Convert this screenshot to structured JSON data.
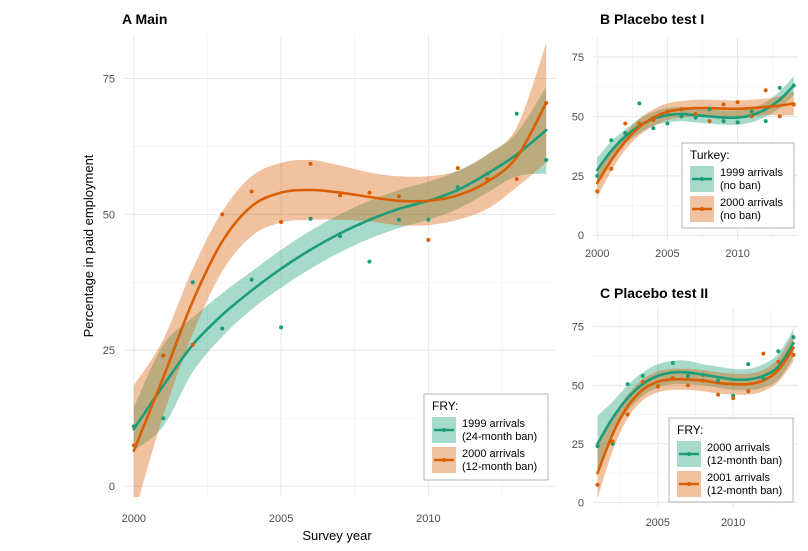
{
  "chart_data": [
    {
      "type": "scatter",
      "panel_label": "A",
      "title": "Main",
      "xlabel": "Survey year",
      "ylabel": "Percentage in paid employment",
      "xlim": [
        1999.7,
        2014.3
      ],
      "ylim": [
        -2,
        83
      ],
      "xticks": [
        2000,
        2005,
        2010
      ],
      "yticks": [
        0,
        25,
        50,
        75
      ],
      "grid": true,
      "legend": {
        "title": "FRY:",
        "placement": "bottom-right"
      },
      "series": [
        {
          "name": "1999 arrivals",
          "name_line2": "(24-month ban)",
          "color": "#1b9e77",
          "fill": "#a6dbc9",
          "x": [
            2000,
            2001,
            2002,
            2003,
            2004,
            2005,
            2006,
            2007,
            2008,
            2009,
            2010,
            2011,
            2012,
            2013,
            2014
          ],
          "points": [
            11,
            12.5,
            37.5,
            29,
            38,
            29.2,
            49.2,
            46,
            41.3,
            49,
            49,
            55,
            57.5,
            68.5,
            60
          ],
          "fit": [
            10.5,
            18.5,
            26,
            31.5,
            36,
            40,
            43.5,
            46.5,
            49,
            51,
            52.5,
            54.5,
            57.5,
            61,
            65.5
          ],
          "band": [
            4,
            7.5,
            5,
            4,
            3.5,
            3.5,
            3.5,
            3.5,
            3.5,
            3.5,
            3.5,
            3.5,
            3.5,
            4,
            8
          ]
        },
        {
          "name": "2000 arrivals",
          "name_line2": "(12-month ban)",
          "color": "#d95f02",
          "fill": "#f0bc95",
          "x": [
            2000,
            2001,
            2002,
            2003,
            2004,
            2005,
            2006,
            2007,
            2008,
            2009,
            2010,
            2011,
            2012,
            2013,
            2014
          ],
          "points": [
            7.5,
            24,
            26,
            50,
            54.2,
            48.6,
            59.3,
            53.5,
            54,
            53.3,
            45.3,
            58.5,
            56.5,
            56.5,
            70.5
          ],
          "fit": [
            6.5,
            20,
            34,
            45,
            51.5,
            54,
            54.5,
            54,
            53.2,
            52.5,
            52.5,
            53.5,
            56,
            60.5,
            70.5
          ],
          "band": [
            12,
            7,
            6,
            5.5,
            5.5,
            5.5,
            5.5,
            5,
            4.5,
            4.5,
            4.5,
            4.5,
            5,
            5.5,
            11
          ]
        }
      ]
    },
    {
      "type": "scatter",
      "panel_label": "B",
      "title": "Placebo test I",
      "xlim": [
        1999.7,
        2014.3
      ],
      "ylim": [
        -2,
        83
      ],
      "xticks": [
        2000,
        2005,
        2010
      ],
      "yticks": [
        0,
        25,
        50,
        75
      ],
      "grid": true,
      "legend": {
        "title": "Turkey:",
        "placement": "right"
      },
      "series": [
        {
          "name": "1999 arrivals",
          "name_line2": "(no ban)",
          "color": "#1b9e77",
          "fill": "#a6dbc9",
          "x": [
            2000,
            2001,
            2002,
            2003,
            2004,
            2005,
            2006,
            2007,
            2008,
            2009,
            2010,
            2011,
            2012,
            2013,
            2014
          ],
          "points": [
            25,
            40,
            43,
            55.5,
            45,
            47,
            50,
            49.5,
            53,
            48,
            47.5,
            52,
            48,
            62,
            63
          ],
          "fit": [
            27.5,
            35.5,
            41.5,
            46,
            49,
            50.5,
            51,
            50.5,
            50,
            49.5,
            49.5,
            50.5,
            53,
            57,
            63
          ],
          "band": [
            5,
            4,
            3,
            3,
            3,
            3,
            3,
            3,
            3,
            3,
            3,
            3,
            3,
            3.5,
            4
          ]
        },
        {
          "name": "2000 arrivals",
          "name_line2": "(no ban)",
          "color": "#d95f02",
          "fill": "#f0bc95",
          "x": [
            2000,
            2001,
            2002,
            2003,
            2004,
            2005,
            2006,
            2007,
            2008,
            2009,
            2010,
            2011,
            2012,
            2013,
            2014
          ],
          "points": [
            18.5,
            28,
            47,
            47,
            48.5,
            52,
            53,
            51,
            48,
            55,
            56,
            50,
            61,
            50,
            55
          ],
          "fit": [
            22,
            31.5,
            39.5,
            45.5,
            49.5,
            52,
            53,
            53.5,
            53.5,
            53.3,
            53.2,
            53.5,
            54,
            54.5,
            55.5
          ],
          "band": [
            6,
            4.5,
            3.5,
            3.5,
            3.5,
            3.5,
            3.5,
            3.5,
            3.5,
            3.5,
            3.5,
            3.5,
            3.5,
            4,
            5
          ]
        }
      ]
    },
    {
      "type": "scatter",
      "panel_label": "C",
      "title": "Placebo test II",
      "xlim": [
        2000.7,
        2014.3
      ],
      "ylim": [
        -2,
        83
      ],
      "xticks": [
        2005,
        2010
      ],
      "yticks": [
        0,
        25,
        50,
        75
      ],
      "grid": true,
      "legend": {
        "title": "FRY:",
        "placement": "bottom-right"
      },
      "series": [
        {
          "name": "2000 arrivals",
          "name_line2": "(12-month ban)",
          "color": "#1b9e77",
          "fill": "#a6dbc9",
          "x": [
            2001,
            2002,
            2003,
            2004,
            2005,
            2006,
            2007,
            2008,
            2009,
            2010,
            2011,
            2012,
            2013,
            2014
          ],
          "points": [
            24,
            25,
            50.5,
            54,
            49.5,
            59.5,
            54,
            54.5,
            52,
            45.5,
            59,
            53,
            64.5,
            70.5
          ],
          "fit": [
            25,
            36,
            44.5,
            50.5,
            54,
            55.5,
            55.5,
            54.5,
            53.5,
            52.5,
            52.5,
            54,
            58,
            68
          ],
          "band": [
            12,
            7,
            5.5,
            5,
            5,
            5,
            5,
            4.5,
            4.5,
            4.5,
            4.5,
            5,
            5.5,
            6
          ]
        },
        {
          "name": "2001 arrivals",
          "name_line2": "(12-month ban)",
          "color": "#d95f02",
          "fill": "#f0bc95",
          "x": [
            2001,
            2002,
            2003,
            2004,
            2005,
            2006,
            2007,
            2008,
            2009,
            2010,
            2011,
            2012,
            2013,
            2014
          ],
          "points": [
            7.5,
            26,
            37.5,
            51.5,
            49.5,
            53,
            50,
            52,
            46,
            44.5,
            47.5,
            63.5,
            60,
            63
          ],
          "fit": [
            12.5,
            29,
            41,
            48,
            51.5,
            52.5,
            52.5,
            52,
            51,
            50.5,
            50.5,
            52,
            56.5,
            66
          ],
          "band": [
            11,
            7,
            5,
            4.5,
            4.5,
            4.5,
            4.5,
            4.5,
            4.5,
            4.5,
            4.5,
            4.5,
            5,
            6
          ]
        }
      ]
    }
  ]
}
